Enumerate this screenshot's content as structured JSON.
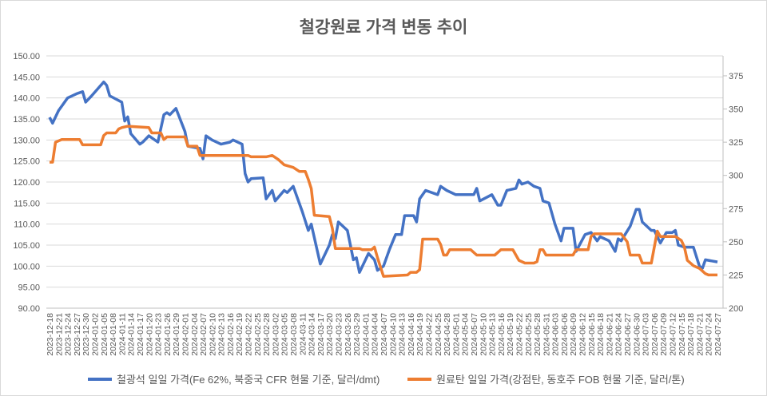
{
  "chart_data": {
    "type": "line",
    "title": "철강원료 가격 변동 추이",
    "xlabel": "",
    "ylabel": "",
    "ylim": [
      90,
      150
    ],
    "ylim_right": [
      200,
      390
    ],
    "yticks": [
      "90.00",
      "95.00",
      "100.00",
      "105.00",
      "110.00",
      "115.00",
      "120.00",
      "125.00",
      "130.00",
      "135.00",
      "140.00",
      "145.00",
      "150.00"
    ],
    "yticks_right": [
      "200",
      "225",
      "250",
      "275",
      "300",
      "325",
      "350",
      "375"
    ],
    "x_start": "2023-12-18",
    "x_end": "2024-07-27",
    "grid": true,
    "legend_position": "bottom",
    "x_tick_labels": [
      "2023-12-18",
      "2023-12-21",
      "2023-12-24",
      "2023-12-27",
      "2023-12-30",
      "2024-01-02",
      "2024-01-05",
      "2024-01-08",
      "2024-01-11",
      "2024-01-14",
      "2024-01-17",
      "2024-01-20",
      "2024-01-23",
      "2024-01-26",
      "2024-01-29",
      "2024-02-01",
      "2024-02-04",
      "2024-02-07",
      "2024-02-10",
      "2024-02-13",
      "2024-02-16",
      "2024-02-19",
      "2024-02-22",
      "2024-02-25",
      "2024-02-28",
      "2024-03-02",
      "2024-03-05",
      "2024-03-08",
      "2024-03-11",
      "2024-03-14",
      "2024-03-17",
      "2024-03-20",
      "2024-03-23",
      "2024-03-26",
      "2024-03-29",
      "2024-04-01",
      "2024-04-04",
      "2024-04-07",
      "2024-04-10",
      "2024-04-13",
      "2024-04-16",
      "2024-04-19",
      "2024-04-22",
      "2024-04-25",
      "2024-04-28",
      "2024-05-01",
      "2024-05-04",
      "2024-05-07",
      "2024-05-10",
      "2024-05-13",
      "2024-05-16",
      "2024-05-19",
      "2024-05-22",
      "2024-05-25",
      "2024-05-28",
      "2024-05-31",
      "2024-06-03",
      "2024-06-06",
      "2024-06-09",
      "2024-06-12",
      "2024-06-15",
      "2024-06-18",
      "2024-06-21",
      "2024-06-24",
      "2024-06-27",
      "2024-06-30",
      "2024-07-03",
      "2024-07-06",
      "2024-07-09",
      "2024-07-12",
      "2024-07-15",
      "2024-07-18",
      "2024-07-21",
      "2024-07-24",
      "2024-07-27"
    ],
    "series": [
      {
        "name": "철광석 일일 가격(Fe 62%, 북중국 CFR 현물 기준, 달러/dmt)",
        "axis": "left",
        "color": "#4472C4",
        "points": [
          [
            "2023-12-18",
            135.4
          ],
          [
            "2023-12-19",
            134
          ],
          [
            "2023-12-21",
            137
          ],
          [
            "2023-12-24",
            140
          ],
          [
            "2023-12-27",
            141
          ],
          [
            "2023-12-29",
            141.5
          ],
          [
            "2023-12-30",
            139
          ],
          [
            "2024-01-01",
            140.5
          ],
          [
            "2024-01-05",
            143.8
          ],
          [
            "2024-01-06",
            143
          ],
          [
            "2024-01-07",
            140.5
          ],
          [
            "2024-01-11",
            139
          ],
          [
            "2024-01-12",
            134.5
          ],
          [
            "2024-01-13",
            135.5
          ],
          [
            "2024-01-14",
            131.5
          ],
          [
            "2024-01-17",
            129
          ],
          [
            "2024-01-18",
            129.5
          ],
          [
            "2024-01-20",
            131
          ],
          [
            "2024-01-23",
            129.5
          ],
          [
            "2024-01-25",
            136
          ],
          [
            "2024-01-26",
            136.5
          ],
          [
            "2024-01-27",
            136
          ],
          [
            "2024-01-29",
            137.5
          ],
          [
            "2024-02-01",
            132
          ],
          [
            "2024-02-02",
            128.5
          ],
          [
            "2024-02-06",
            128
          ],
          [
            "2024-02-07",
            125.5
          ],
          [
            "2024-02-08",
            131
          ],
          [
            "2024-02-10",
            130
          ],
          [
            "2024-02-13",
            129
          ],
          [
            "2024-02-16",
            129.5
          ],
          [
            "2024-02-17",
            130
          ],
          [
            "2024-02-20",
            129
          ],
          [
            "2024-02-21",
            122
          ],
          [
            "2024-02-22",
            120
          ],
          [
            "2024-02-23",
            120.8
          ],
          [
            "2024-02-27",
            121
          ],
          [
            "2024-02-28",
            116
          ],
          [
            "2024-03-01",
            118
          ],
          [
            "2024-03-02",
            115.5
          ],
          [
            "2024-03-05",
            118
          ],
          [
            "2024-03-06",
            117.5
          ],
          [
            "2024-03-08",
            119
          ],
          [
            "2024-03-11",
            113
          ],
          [
            "2024-03-13",
            108.5
          ],
          [
            "2024-03-14",
            110
          ],
          [
            "2024-03-17",
            100.5
          ],
          [
            "2024-03-20",
            105
          ],
          [
            "2024-03-21",
            107.5
          ],
          [
            "2024-03-22",
            106.5
          ],
          [
            "2024-03-23",
            110.5
          ],
          [
            "2024-03-26",
            108.5
          ],
          [
            "2024-03-28",
            101.5
          ],
          [
            "2024-03-29",
            102
          ],
          [
            "2024-03-30",
            98.5
          ],
          [
            "2024-04-02",
            103
          ],
          [
            "2024-04-04",
            101.5
          ],
          [
            "2024-04-05",
            99
          ],
          [
            "2024-04-07",
            100
          ],
          [
            "2024-04-09",
            104
          ],
          [
            "2024-04-11",
            107.5
          ],
          [
            "2024-04-13",
            107.5
          ],
          [
            "2024-04-14",
            112
          ],
          [
            "2024-04-17",
            112
          ],
          [
            "2024-04-18",
            110.5
          ],
          [
            "2024-04-19",
            116
          ],
          [
            "2024-04-21",
            118
          ],
          [
            "2024-04-25",
            117
          ],
          [
            "2024-04-26",
            119
          ],
          [
            "2024-04-28",
            118
          ],
          [
            "2024-05-01",
            117
          ],
          [
            "2024-05-07",
            117
          ],
          [
            "2024-05-08",
            118.5
          ],
          [
            "2024-05-09",
            115.5
          ],
          [
            "2024-05-13",
            117
          ],
          [
            "2024-05-15",
            114.5
          ],
          [
            "2024-05-16",
            114.5
          ],
          [
            "2024-05-18",
            118
          ],
          [
            "2024-05-21",
            118.5
          ],
          [
            "2024-05-22",
            120.5
          ],
          [
            "2024-05-23",
            119.5
          ],
          [
            "2024-05-25",
            120
          ],
          [
            "2024-05-27",
            119
          ],
          [
            "2024-05-29",
            118.5
          ],
          [
            "2024-05-30",
            115.5
          ],
          [
            "2024-06-01",
            115
          ],
          [
            "2024-06-03",
            110
          ],
          [
            "2024-06-05",
            106
          ],
          [
            "2024-06-06",
            109
          ],
          [
            "2024-06-09",
            109
          ],
          [
            "2024-06-10",
            103.5
          ],
          [
            "2024-06-13",
            107.5
          ],
          [
            "2024-06-15",
            108
          ],
          [
            "2024-06-17",
            106
          ],
          [
            "2024-06-18",
            107
          ],
          [
            "2024-06-21",
            106
          ],
          [
            "2024-06-23",
            103.5
          ],
          [
            "2024-06-24",
            106.5
          ],
          [
            "2024-06-25",
            106
          ],
          [
            "2024-06-28",
            109.5
          ],
          [
            "2024-06-30",
            113.5
          ],
          [
            "2024-07-01",
            113.5
          ],
          [
            "2024-07-02",
            110.5
          ],
          [
            "2024-07-05",
            108.5
          ],
          [
            "2024-07-06",
            108.5
          ],
          [
            "2024-07-08",
            105.5
          ],
          [
            "2024-07-10",
            108
          ],
          [
            "2024-07-12",
            108
          ],
          [
            "2024-07-13",
            108.5
          ],
          [
            "2024-07-14",
            105
          ],
          [
            "2024-07-16",
            104.5
          ],
          [
            "2024-07-19",
            104.5
          ],
          [
            "2024-07-21",
            100
          ],
          [
            "2024-07-22",
            99.5
          ],
          [
            "2024-07-23",
            101.5
          ],
          [
            "2024-07-27",
            101
          ]
        ]
      },
      {
        "name": "원료탄 일일 가격(강점탄, 동호주 FOB 현물 기준, 달러/톤)",
        "axis": "right",
        "color": "#ED7D31",
        "points": [
          [
            "2023-12-18",
            310
          ],
          [
            "2023-12-19",
            310
          ],
          [
            "2023-12-20",
            325
          ],
          [
            "2023-12-22",
            327
          ],
          [
            "2023-12-28",
            327
          ],
          [
            "2023-12-29",
            323
          ],
          [
            "2024-01-04",
            323
          ],
          [
            "2024-01-05",
            330
          ],
          [
            "2024-01-06",
            332
          ],
          [
            "2024-01-09",
            332
          ],
          [
            "2024-01-10",
            335
          ],
          [
            "2024-01-11",
            336
          ],
          [
            "2024-01-13",
            337
          ],
          [
            "2024-01-20",
            336
          ],
          [
            "2024-01-21",
            332
          ],
          [
            "2024-01-24",
            332
          ],
          [
            "2024-01-25",
            327
          ],
          [
            "2024-01-26",
            329
          ],
          [
            "2024-02-01",
            329
          ],
          [
            "2024-02-02",
            322
          ],
          [
            "2024-02-05",
            322
          ],
          [
            "2024-02-06",
            315
          ],
          [
            "2024-02-22",
            315
          ],
          [
            "2024-02-23",
            314
          ],
          [
            "2024-02-28",
            314
          ],
          [
            "2024-03-01",
            315
          ],
          [
            "2024-03-03",
            312
          ],
          [
            "2024-03-05",
            308
          ],
          [
            "2024-03-08",
            306
          ],
          [
            "2024-03-10",
            303
          ],
          [
            "2024-03-12",
            303
          ],
          [
            "2024-03-13",
            297
          ],
          [
            "2024-03-14",
            290
          ],
          [
            "2024-03-15",
            270
          ],
          [
            "2024-03-20",
            269
          ],
          [
            "2024-03-21",
            260
          ],
          [
            "2024-03-22",
            245
          ],
          [
            "2024-03-30",
            245
          ],
          [
            "2024-03-31",
            244
          ],
          [
            "2024-04-03",
            244
          ],
          [
            "2024-04-04",
            246
          ],
          [
            "2024-04-05",
            238
          ],
          [
            "2024-04-07",
            224
          ],
          [
            "2024-04-15",
            225
          ],
          [
            "2024-04-16",
            227
          ],
          [
            "2024-04-18",
            227
          ],
          [
            "2024-04-19",
            229
          ],
          [
            "2024-04-20",
            252
          ],
          [
            "2024-04-25",
            252
          ],
          [
            "2024-04-26",
            248
          ],
          [
            "2024-04-27",
            240
          ],
          [
            "2024-04-28",
            240
          ],
          [
            "2024-04-29",
            244
          ],
          [
            "2024-05-06",
            244
          ],
          [
            "2024-05-08",
            240
          ],
          [
            "2024-05-14",
            240
          ],
          [
            "2024-05-16",
            244
          ],
          [
            "2024-05-20",
            244
          ],
          [
            "2024-05-22",
            236
          ],
          [
            "2024-05-24",
            234
          ],
          [
            "2024-05-27",
            234
          ],
          [
            "2024-05-28",
            235
          ],
          [
            "2024-05-29",
            244
          ],
          [
            "2024-05-30",
            244
          ],
          [
            "2024-05-31",
            240
          ],
          [
            "2024-06-09",
            240
          ],
          [
            "2024-06-10",
            244
          ],
          [
            "2024-06-14",
            244
          ],
          [
            "2024-06-15",
            254
          ],
          [
            "2024-06-16",
            256
          ],
          [
            "2024-06-25",
            256
          ],
          [
            "2024-06-27",
            250
          ],
          [
            "2024-06-28",
            240
          ],
          [
            "2024-07-01",
            240
          ],
          [
            "2024-07-02",
            234
          ],
          [
            "2024-07-05",
            234
          ],
          [
            "2024-07-07",
            258
          ],
          [
            "2024-07-08",
            254
          ],
          [
            "2024-07-13",
            254
          ],
          [
            "2024-07-15",
            251
          ],
          [
            "2024-07-16",
            246
          ],
          [
            "2024-07-17",
            236
          ],
          [
            "2024-07-19",
            232
          ],
          [
            "2024-07-21",
            230
          ],
          [
            "2024-07-23",
            226
          ],
          [
            "2024-07-24",
            225
          ],
          [
            "2024-07-27",
            225
          ]
        ]
      }
    ]
  }
}
